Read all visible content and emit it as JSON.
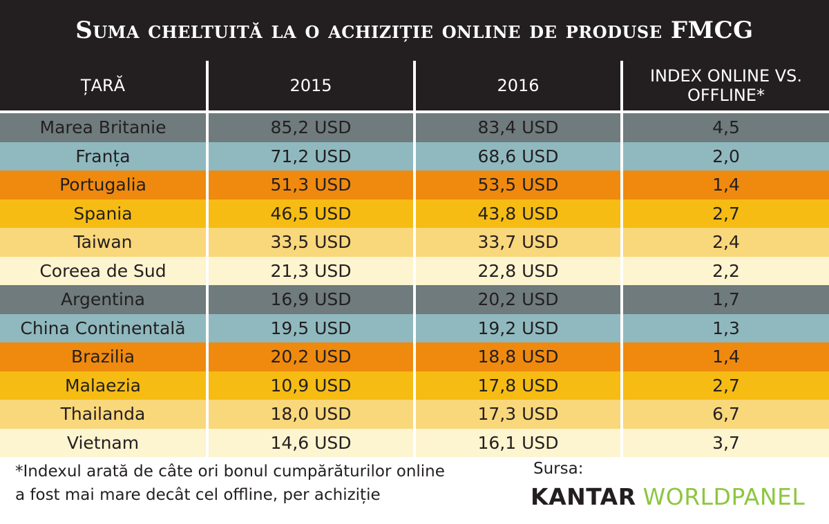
{
  "title": "Suma cheltuită la o achiziție online de produse FMCG",
  "chart_data": {
    "type": "table",
    "title": "Suma cheltuită la o achiziție online de produse FMCG",
    "columns": [
      "ȚARĂ",
      "2015",
      "2016",
      "INDEX ONLINE VS. OFFLINE*"
    ],
    "rows": [
      {
        "country": "Marea Britanie",
        "y2015": "85,2 USD",
        "y2016": "83,4 USD",
        "index": "4,5",
        "color": "#6f7b7d"
      },
      {
        "country": "Franța",
        "y2015": "71,2 USD",
        "y2016": "68,6 USD",
        "index": "2,0",
        "color": "#8fb9bf"
      },
      {
        "country": "Portugalia",
        "y2015": "51,3 USD",
        "y2016": "53,5 USD",
        "index": "1,4",
        "color": "#ef8a0f"
      },
      {
        "country": "Spania",
        "y2015": "46,5 USD",
        "y2016": "43,8 USD",
        "index": "2,7",
        "color": "#f6bc13"
      },
      {
        "country": "Taiwan",
        "y2015": "33,5 USD",
        "y2016": "33,7 USD",
        "index": "2,4",
        "color": "#f9d77b"
      },
      {
        "country": "Coreea de Sud",
        "y2015": "21,3 USD",
        "y2016": "22,8 USD",
        "index": "2,2",
        "color": "#fdf4d0"
      },
      {
        "country": "Argentina",
        "y2015": "16,9 USD",
        "y2016": "20,2 USD",
        "index": "1,7",
        "color": "#6f7b7d"
      },
      {
        "country": "China Continentală",
        "y2015": "19,5 USD",
        "y2016": "19,2 USD",
        "index": "1,3",
        "color": "#8fb9bf"
      },
      {
        "country": "Brazilia",
        "y2015": "20,2 USD",
        "y2016": "18,8 USD",
        "index": "1,4",
        "color": "#ef8a0f"
      },
      {
        "country": "Malaezia",
        "y2015": "10,9 USD",
        "y2016": "17,8 USD",
        "index": "2,7",
        "color": "#f6bc13"
      },
      {
        "country": "Thailanda",
        "y2015": "18,0 USD",
        "y2016": "17,3 USD",
        "index": "6,7",
        "color": "#f9d77b"
      },
      {
        "country": "Vietnam",
        "y2015": "14,6 USD",
        "y2016": "16,1 USD",
        "index": "3,7",
        "color": "#fdf4d0"
      }
    ]
  },
  "footnote_line1": "*Indexul arată de câte ori bonul cumpărăturilor online",
  "footnote_line2": "a fost mai mare decât cel offline, per achiziție",
  "source_label": "Sursa:",
  "logo_part1": "KANTAR",
  "logo_part2": "WORLDPANEL"
}
